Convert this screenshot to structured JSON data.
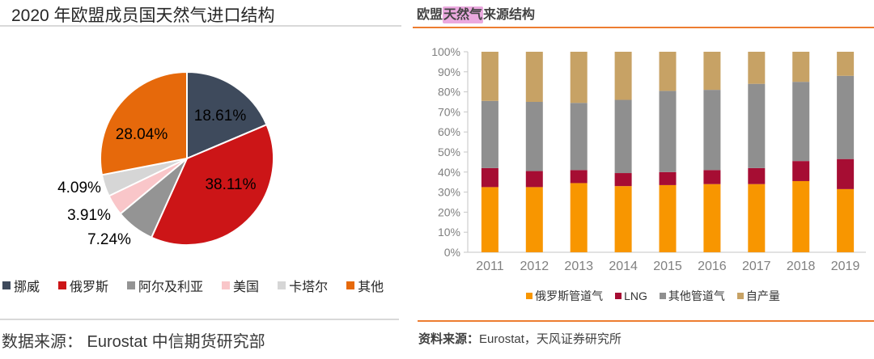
{
  "left_chart": {
    "title": "2020 年欧盟成员国天然气进口结构",
    "source": "数据来源： Eurostat 中信期货研究部"
  },
  "right_chart": {
    "title_pre": "欧盟",
    "title_highlight": "天然气",
    "title_post": "来源结构",
    "highlight_color": "#EBA9DF",
    "accent_line_color": "#ED7D31",
    "source_prefix": "资料来源：",
    "source_rest": "Eurostat，天风证券研究所"
  },
  "chart_data": [
    {
      "type": "pie",
      "title": "2020 年欧盟成员国天然气进口结构",
      "labels": [
        "挪威",
        "俄罗斯",
        "阿尔及利亚",
        "美国",
        "卡塔尔",
        "其他"
      ],
      "values": [
        18.61,
        38.11,
        7.24,
        3.91,
        4.09,
        28.04
      ],
      "value_labels": [
        "18.61%",
        "38.11%",
        "7.24%",
        "3.91%",
        "4.09%",
        "28.04%"
      ],
      "colors": [
        "#3E4A5C",
        "#CC1517",
        "#949494",
        "#F9C6C9",
        "#D6D6D6",
        "#E6690B"
      ],
      "start_angle_deg": 0,
      "direction": "clockwise",
      "legend_position": "bottom"
    },
    {
      "type": "stacked_bar_100pct",
      "title": "欧盟天然气来源结构",
      "categories": [
        "2011",
        "2012",
        "2013",
        "2014",
        "2015",
        "2016",
        "2017",
        "2018",
        "2019"
      ],
      "series": [
        {
          "name": "俄罗斯管道气",
          "color": "#F89600",
          "values": [
            32.5,
            32.5,
            34.5,
            33,
            33.5,
            34,
            34,
            35.5,
            31.5
          ]
        },
        {
          "name": "LNG",
          "color": "#A60D33",
          "values": [
            9.5,
            8,
            6.5,
            6.5,
            6.5,
            7,
            8,
            10,
            15
          ]
        },
        {
          "name": "其他管道气",
          "color": "#8F8F8F",
          "values": [
            33.5,
            34.5,
            33.5,
            36.5,
            40.5,
            40,
            42,
            39.5,
            41.5
          ]
        },
        {
          "name": "自产量",
          "color": "#C7A265",
          "values": [
            24.5,
            25,
            25.5,
            24,
            19.5,
            19,
            16,
            15,
            12
          ]
        }
      ],
      "ylabel_ticks": [
        "0%",
        "10%",
        "20%",
        "30%",
        "40%",
        "50%",
        "60%",
        "70%",
        "80%",
        "90%",
        "100%"
      ],
      "ylim": [
        0,
        100
      ],
      "grid": false,
      "legend_position": "bottom"
    }
  ]
}
